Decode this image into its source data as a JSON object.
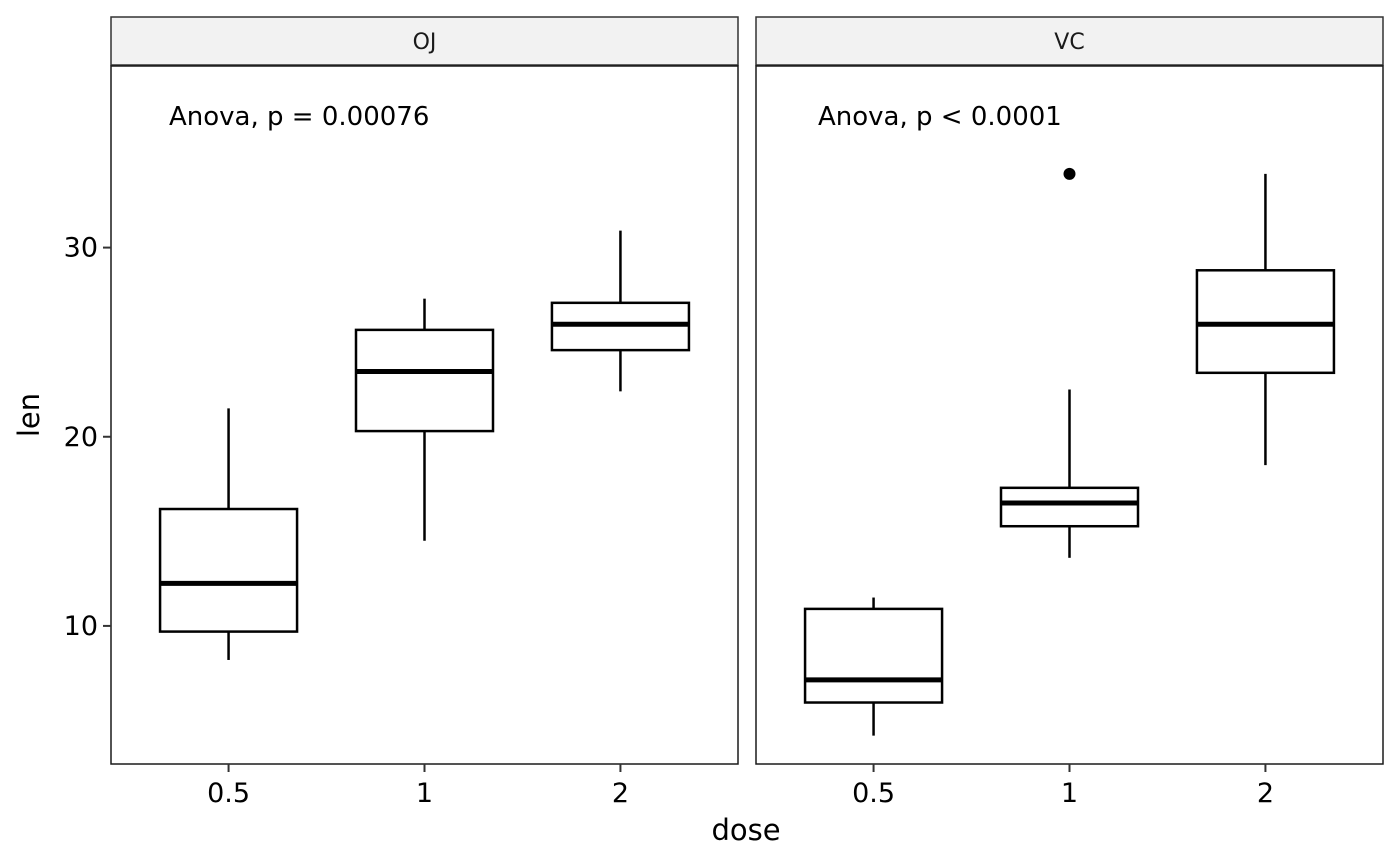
{
  "chart_data": {
    "type": "boxplot",
    "xlabel": "dose",
    "ylabel": "len",
    "categories": [
      "0.5",
      "1",
      "2"
    ],
    "yticks": [
      10,
      20,
      30
    ],
    "ylim": [
      2.7,
      39.6
    ],
    "grid": false,
    "legend": "none",
    "panels": [
      {
        "label": "OJ",
        "annotation": "Anova, p = 0.00076",
        "boxes": [
          {
            "x": "0.5",
            "whisker_low": 8.2,
            "q1": 9.7,
            "median": 12.25,
            "q3": 16.18,
            "whisker_high": 21.5,
            "outliers": []
          },
          {
            "x": "1",
            "whisker_low": 14.5,
            "q1": 20.3,
            "median": 23.45,
            "q3": 25.65,
            "whisker_high": 27.3,
            "outliers": []
          },
          {
            "x": "2",
            "whisker_low": 22.4,
            "q1": 24.58,
            "median": 25.95,
            "q3": 27.08,
            "whisker_high": 30.9,
            "outliers": []
          }
        ]
      },
      {
        "label": "VC",
        "annotation": "Anova, p < 0.0001",
        "boxes": [
          {
            "x": "0.5",
            "whisker_low": 4.2,
            "q1": 5.95,
            "median": 7.15,
            "q3": 10.9,
            "whisker_high": 11.5,
            "outliers": []
          },
          {
            "x": "1",
            "whisker_low": 13.6,
            "q1": 15.27,
            "median": 16.5,
            "q3": 17.3,
            "whisker_high": 22.5,
            "outliers": [
              33.9
            ]
          },
          {
            "x": "2",
            "whisker_low": 18.5,
            "q1": 23.38,
            "median": 25.95,
            "q3": 28.8,
            "whisker_high": 33.9,
            "outliers": []
          }
        ]
      }
    ]
  }
}
